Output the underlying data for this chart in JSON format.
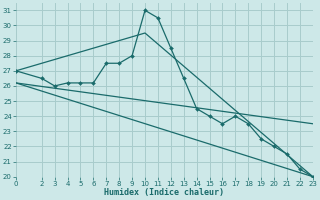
{
  "background_color": "#cde8e8",
  "grid_color": "#a8cccc",
  "line_color": "#1a6b6b",
  "xlabel": "Humidex (Indice chaleur)",
  "xlim": [
    0,
    23
  ],
  "ylim": [
    20,
    31.5
  ],
  "yticks": [
    20,
    21,
    22,
    23,
    24,
    25,
    26,
    27,
    28,
    29,
    30,
    31
  ],
  "xtick_values": [
    0,
    2,
    3,
    4,
    5,
    6,
    7,
    8,
    9,
    10,
    11,
    12,
    13,
    14,
    15,
    16,
    17,
    18,
    19,
    20,
    21,
    22,
    23
  ],
  "series": [
    {
      "x": [
        0,
        2,
        3,
        4,
        5,
        6,
        7,
        8,
        9,
        10,
        11,
        12,
        13,
        14,
        15,
        16,
        17,
        18,
        19,
        20,
        21,
        22,
        23
      ],
      "y": [
        27,
        26.5,
        26,
        26.2,
        26.2,
        26.2,
        27.5,
        27.5,
        28,
        31,
        30.5,
        28.5,
        26.5,
        24.5,
        24.0,
        23.5,
        24.0,
        23.5,
        22.5,
        22.0,
        21.5,
        20.5,
        20
      ],
      "marker": "D",
      "markersize": 2.0,
      "linewidth": 0.9
    },
    {
      "x": [
        0,
        10,
        23
      ],
      "y": [
        27,
        29.5,
        20
      ],
      "marker": "none",
      "linewidth": 0.9
    },
    {
      "x": [
        0,
        23
      ],
      "y": [
        26.2,
        23.5
      ],
      "marker": "none",
      "linewidth": 0.9
    },
    {
      "x": [
        0,
        23
      ],
      "y": [
        26.2,
        20
      ],
      "marker": "none",
      "linewidth": 0.9
    }
  ]
}
